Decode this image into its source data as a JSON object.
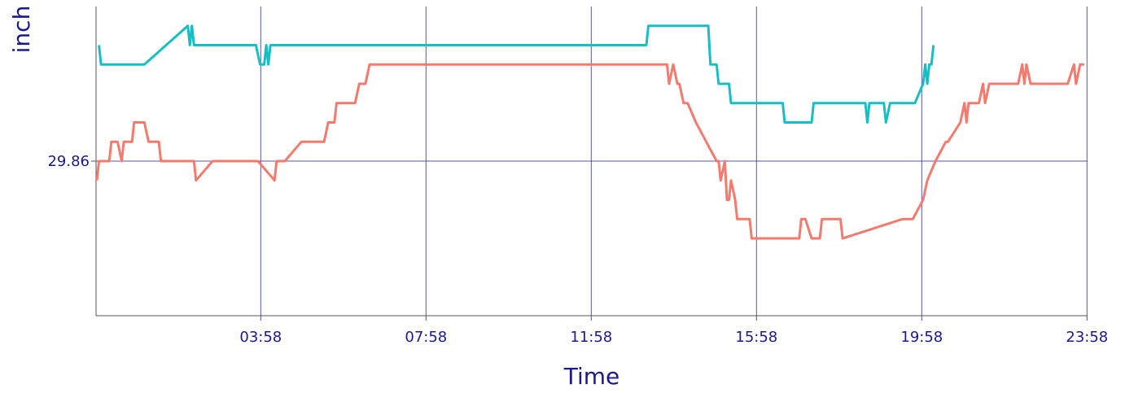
{
  "chart_data": {
    "type": "line",
    "xlabel": "Time",
    "ylabel": "inch",
    "x_ticks": [
      "03:58",
      "07:58",
      "11:58",
      "15:58",
      "19:58",
      "23:58"
    ],
    "y_ticks": [
      "29.86"
    ],
    "xlim": [
      -0.02,
      23.98
    ],
    "ylim": [
      29.82,
      29.9
    ],
    "grid": true,
    "series": [
      {
        "color": "#f47a6e",
        "x": [
          0.0,
          0.05,
          0.3,
          0.35,
          0.5,
          0.6,
          0.65,
          0.85,
          0.9,
          1.15,
          1.25,
          1.5,
          1.55,
          1.85,
          1.9,
          2.35,
          2.4,
          2.8,
          2.85,
          3.4,
          3.5,
          3.6,
          3.75,
          3.9,
          4.3,
          4.35,
          4.5,
          4.55,
          4.95,
          5.05,
          5.15,
          5.5,
          5.6,
          5.75,
          5.8,
          6.25,
          6.35,
          6.5,
          6.6,
          6.65,
          13.8,
          13.85,
          13.95,
          14.05,
          14.1,
          14.2,
          14.3,
          14.5,
          14.75,
          15.0,
          15.05,
          15.1,
          15.2,
          15.25,
          15.3,
          15.35,
          15.45,
          15.5,
          15.55,
          15.8,
          15.85,
          16.0,
          16.4,
          17.0,
          17.05,
          17.15,
          17.3,
          17.5,
          17.55,
          18.0,
          18.05,
          19.5,
          19.75,
          20.0,
          20.1,
          20.3,
          20.55,
          20.6,
          20.9,
          21.0,
          21.05,
          21.1,
          21.35,
          21.45,
          21.5,
          21.6,
          21.65,
          22.2,
          22.3,
          22.4,
          22.45,
          22.5,
          22.6,
          22.65,
          23.5,
          23.65,
          23.7,
          23.8,
          23.9
        ],
        "y": [
          29.855,
          29.86,
          29.86,
          29.865,
          29.865,
          29.86,
          29.865,
          29.865,
          29.87,
          29.87,
          29.865,
          29.865,
          29.86,
          29.86,
          29.86,
          29.86,
          29.855,
          29.86,
          29.86,
          29.86,
          29.86,
          29.86,
          29.86,
          29.86,
          29.855,
          29.86,
          29.86,
          29.86,
          29.865,
          29.865,
          29.865,
          29.865,
          29.87,
          29.87,
          29.875,
          29.875,
          29.88,
          29.88,
          29.885,
          29.885,
          29.885,
          29.88,
          29.885,
          29.88,
          29.88,
          29.875,
          29.875,
          29.87,
          29.865,
          29.86,
          29.86,
          29.855,
          29.86,
          29.85,
          29.85,
          29.855,
          29.85,
          29.845,
          29.845,
          29.845,
          29.84,
          29.84,
          29.84,
          29.84,
          29.845,
          29.845,
          29.84,
          29.84,
          29.845,
          29.845,
          29.84,
          29.845,
          29.845,
          29.85,
          29.855,
          29.86,
          29.865,
          29.865,
          29.87,
          29.875,
          29.87,
          29.875,
          29.875,
          29.88,
          29.875,
          29.88,
          29.88,
          29.88,
          29.88,
          29.885,
          29.88,
          29.885,
          29.88,
          29.88,
          29.88,
          29.885,
          29.88,
          29.885,
          29.885
        ]
      },
      {
        "color": "#17bec4",
        "x": [
          0.05,
          0.1,
          1.15,
          2.2,
          2.25,
          2.3,
          2.35,
          3.85,
          3.95,
          4.0,
          4.05,
          4.1,
          4.15,
          4.2,
          4.25,
          4.3,
          13.3,
          13.35,
          14.8,
          14.85,
          15.0,
          15.05,
          15.3,
          15.35,
          16.6,
          16.65,
          17.0,
          17.05,
          17.15,
          17.2,
          17.3,
          17.35,
          17.45,
          18.05,
          18.1,
          18.15,
          18.6,
          18.65,
          18.7,
          18.75,
          18.8,
          18.85,
          18.9,
          19.0,
          19.05,
          19.1,
          19.2,
          19.25,
          19.3,
          19.35,
          19.45,
          19.5,
          19.55,
          19.6,
          19.65,
          19.7,
          19.75,
          19.8,
          20.0,
          20.05,
          20.1,
          20.15,
          20.2,
          20.25
        ],
        "y": [
          29.89,
          29.885,
          29.885,
          29.895,
          29.89,
          29.895,
          29.89,
          29.89,
          29.885,
          29.885,
          29.885,
          29.89,
          29.885,
          29.89,
          29.89,
          29.89,
          29.89,
          29.895,
          29.895,
          29.885,
          29.885,
          29.88,
          29.88,
          29.875,
          29.875,
          29.87,
          29.87,
          29.87,
          29.87,
          29.87,
          29.87,
          29.875,
          29.875,
          29.875,
          29.875,
          29.875,
          29.875,
          29.87,
          29.875,
          29.875,
          29.875,
          29.875,
          29.875,
          29.875,
          29.875,
          29.87,
          29.875,
          29.875,
          29.875,
          29.875,
          29.875,
          29.875,
          29.875,
          29.875,
          29.875,
          29.875,
          29.875,
          29.875,
          29.88,
          29.885,
          29.88,
          29.885,
          29.885,
          29.89
        ]
      }
    ]
  }
}
